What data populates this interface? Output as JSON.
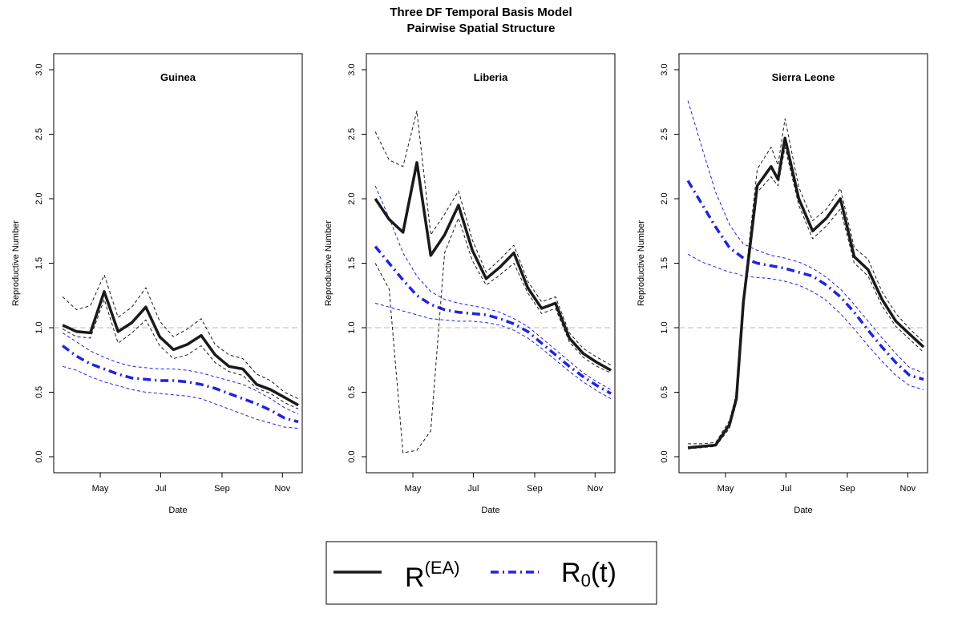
{
  "title": {
    "line1": "Three DF Temporal Basis Model",
    "line2": "Pairwise Spatial Structure"
  },
  "legend": {
    "entries": [
      {
        "base": "R",
        "sup": "(EA)",
        "sub": "",
        "tail": "",
        "color": "#1a1a1a",
        "style": "solid"
      },
      {
        "base": "R",
        "sup": "",
        "sub": "0",
        "tail": "(t)",
        "color": "#2222e0",
        "style": "dashdot"
      }
    ]
  },
  "colors": {
    "rea": "#1a1a1a",
    "r0": "#2222e0",
    "reference": "#bbbbbb"
  },
  "chart_data": [
    {
      "type": "line",
      "title": "Guinea",
      "xlabel": "Date",
      "ylabel": "Reproductive Number",
      "ylim": [
        0.0,
        3.0
      ],
      "yticks": [
        0.0,
        0.5,
        1.0,
        1.5,
        2.0,
        2.5,
        3.0
      ],
      "ytick_labels": [
        "0.0",
        "0.5",
        "1.0",
        "1.5",
        "2.0",
        "2.5",
        "3.0"
      ],
      "xlim": [
        "2014-03-15",
        "2014-11-21"
      ],
      "xticks": [
        "2014-05-01",
        "2014-07-01",
        "2014-09-01",
        "2014-11-01"
      ],
      "xtick_labels": [
        "May",
        "Jul",
        "Sep",
        "Nov"
      ],
      "reference_line": 1.0,
      "x": [
        "2014-03-24",
        "2014-04-07",
        "2014-04-21",
        "2014-05-05",
        "2014-05-19",
        "2014-06-02",
        "2014-06-16",
        "2014-06-30",
        "2014-07-14",
        "2014-07-28",
        "2014-08-11",
        "2014-08-25",
        "2014-09-08",
        "2014-09-22",
        "2014-10-06",
        "2014-10-20",
        "2014-11-03",
        "2014-11-17"
      ],
      "series": [
        {
          "name": "R(EA)",
          "values": [
            1.02,
            0.97,
            0.96,
            1.28,
            0.97,
            1.04,
            1.16,
            0.93,
            0.83,
            0.87,
            0.94,
            0.79,
            0.7,
            0.68,
            0.56,
            0.52,
            0.46,
            0.4
          ]
        },
        {
          "name": "R(EA) lower",
          "values": [
            0.99,
            0.93,
            0.92,
            1.22,
            0.88,
            0.96,
            1.06,
            0.86,
            0.76,
            0.79,
            0.86,
            0.73,
            0.66,
            0.63,
            0.53,
            0.49,
            0.42,
            0.37
          ]
        },
        {
          "name": "R(EA) upper",
          "values": [
            1.24,
            1.14,
            1.17,
            1.41,
            1.08,
            1.16,
            1.31,
            1.05,
            0.93,
            0.99,
            1.07,
            0.87,
            0.79,
            0.76,
            0.64,
            0.59,
            0.5,
            0.45
          ]
        },
        {
          "name": "R0(t)",
          "values": [
            0.86,
            0.78,
            0.72,
            0.68,
            0.64,
            0.61,
            0.6,
            0.59,
            0.59,
            0.58,
            0.56,
            0.53,
            0.49,
            0.45,
            0.41,
            0.36,
            0.3,
            0.27
          ]
        },
        {
          "name": "R0(t) lower",
          "values": [
            0.7,
            0.67,
            0.62,
            0.58,
            0.55,
            0.52,
            0.5,
            0.49,
            0.48,
            0.47,
            0.45,
            0.41,
            0.37,
            0.33,
            0.29,
            0.26,
            0.23,
            0.22
          ]
        },
        {
          "name": "R0(t) upper",
          "values": [
            0.96,
            0.89,
            0.82,
            0.77,
            0.73,
            0.7,
            0.69,
            0.68,
            0.68,
            0.67,
            0.65,
            0.62,
            0.59,
            0.56,
            0.51,
            0.45,
            0.38,
            0.33
          ]
        }
      ]
    },
    {
      "type": "line",
      "title": "Liberia",
      "xlabel": "Date",
      "ylabel": "Reproductive Number",
      "ylim": [
        0.0,
        3.0
      ],
      "yticks": [
        0.0,
        0.5,
        1.0,
        1.5,
        2.0,
        2.5,
        3.0
      ],
      "ytick_labels": [
        "0.0",
        "0.5",
        "1.0",
        "1.5",
        "2.0",
        "2.5",
        "3.0"
      ],
      "xlim": [
        "2014-03-15",
        "2014-11-21"
      ],
      "xticks": [
        "2014-05-01",
        "2014-07-01",
        "2014-09-01",
        "2014-11-01"
      ],
      "xtick_labels": [
        "May",
        "Jul",
        "Sep",
        "Nov"
      ],
      "reference_line": 1.0,
      "x": [
        "2014-03-24",
        "2014-04-07",
        "2014-04-21",
        "2014-05-05",
        "2014-05-19",
        "2014-06-02",
        "2014-06-16",
        "2014-06-30",
        "2014-07-14",
        "2014-07-28",
        "2014-08-11",
        "2014-08-25",
        "2014-09-08",
        "2014-09-22",
        "2014-10-06",
        "2014-10-20",
        "2014-11-03",
        "2014-11-17"
      ],
      "series": [
        {
          "name": "R(EA)",
          "values": [
            2.0,
            1.84,
            1.74,
            2.28,
            1.56,
            1.72,
            1.95,
            1.6,
            1.38,
            1.47,
            1.58,
            1.31,
            1.15,
            1.19,
            0.92,
            0.8,
            0.73,
            0.67
          ]
        },
        {
          "name": "R(EA) lower",
          "values": [
            1.5,
            1.3,
            0.03,
            0.05,
            0.2,
            1.58,
            1.85,
            1.52,
            1.33,
            1.41,
            1.5,
            1.27,
            1.11,
            1.15,
            0.89,
            0.77,
            0.7,
            0.65
          ]
        },
        {
          "name": "R(EA) upper",
          "values": [
            2.52,
            2.3,
            2.25,
            2.68,
            1.72,
            1.88,
            2.06,
            1.68,
            1.43,
            1.53,
            1.64,
            1.36,
            1.2,
            1.24,
            0.96,
            0.84,
            0.77,
            0.71
          ]
        },
        {
          "name": "R0(t)",
          "values": [
            1.63,
            1.5,
            1.37,
            1.25,
            1.18,
            1.14,
            1.12,
            1.11,
            1.1,
            1.07,
            1.03,
            0.97,
            0.88,
            0.79,
            0.7,
            0.62,
            0.55,
            0.49
          ]
        },
        {
          "name": "R0(t) lower",
          "values": [
            1.19,
            1.16,
            1.13,
            1.1,
            1.07,
            1.06,
            1.05,
            1.05,
            1.04,
            1.02,
            0.98,
            0.92,
            0.84,
            0.75,
            0.66,
            0.58,
            0.51,
            0.45
          ]
        },
        {
          "name": "R0(t) upper",
          "values": [
            2.1,
            1.85,
            1.58,
            1.4,
            1.28,
            1.22,
            1.19,
            1.17,
            1.15,
            1.12,
            1.07,
            1.01,
            0.92,
            0.83,
            0.74,
            0.65,
            0.58,
            0.52
          ]
        }
      ]
    },
    {
      "type": "line",
      "title": "Sierra Leone",
      "xlabel": "Date",
      "ylabel": "Reproductive Number",
      "ylim": [
        0.0,
        3.0
      ],
      "yticks": [
        0.0,
        0.5,
        1.0,
        1.5,
        2.0,
        2.5,
        3.0
      ],
      "ytick_labels": [
        "0.0",
        "0.5",
        "1.0",
        "1.5",
        "2.0",
        "2.5",
        "3.0"
      ],
      "xlim": [
        "2014-03-15",
        "2014-11-21"
      ],
      "xticks": [
        "2014-05-01",
        "2014-07-01",
        "2014-09-01",
        "2014-11-01"
      ],
      "xtick_labels": [
        "May",
        "Jul",
        "Sep",
        "Nov"
      ],
      "reference_line": 1.0,
      "x": [
        "2014-03-24",
        "2014-04-07",
        "2014-04-21",
        "2014-05-05",
        "2014-05-12",
        "2014-05-19",
        "2014-06-02",
        "2014-06-16",
        "2014-06-23",
        "2014-06-30",
        "2014-07-14",
        "2014-07-28",
        "2014-08-11",
        "2014-08-25",
        "2014-09-08",
        "2014-09-22",
        "2014-10-06",
        "2014-10-20",
        "2014-11-03",
        "2014-11-17"
      ],
      "series": [
        {
          "name": "R(EA)",
          "values": [
            0.07,
            0.08,
            0.09,
            0.25,
            0.45,
            1.2,
            2.1,
            2.25,
            2.15,
            2.47,
            2.0,
            1.75,
            1.85,
            2.0,
            1.55,
            1.45,
            1.22,
            1.05,
            0.95,
            0.85
          ]
        },
        {
          "name": "R(EA) lower",
          "values": [
            0.06,
            0.07,
            0.08,
            0.22,
            0.42,
            1.15,
            2.05,
            2.17,
            2.1,
            2.4,
            1.95,
            1.69,
            1.79,
            1.92,
            1.5,
            1.4,
            1.17,
            1.01,
            0.91,
            0.81
          ]
        },
        {
          "name": "R(EA) upper",
          "values": [
            0.1,
            0.1,
            0.11,
            0.28,
            0.49,
            1.25,
            2.23,
            2.4,
            2.26,
            2.62,
            2.09,
            1.83,
            1.92,
            2.08,
            1.62,
            1.53,
            1.28,
            1.11,
            0.99,
            0.89
          ]
        },
        {
          "name": "R0(t)",
          "values": [
            2.14,
            1.96,
            1.78,
            1.62,
            1.58,
            1.54,
            1.5,
            1.48,
            1.47,
            1.46,
            1.43,
            1.4,
            1.33,
            1.24,
            1.12,
            0.98,
            0.85,
            0.73,
            0.63,
            0.6
          ]
        },
        {
          "name": "R0(t) lower",
          "values": [
            1.57,
            1.51,
            1.47,
            1.43,
            1.42,
            1.4,
            1.39,
            1.38,
            1.37,
            1.36,
            1.33,
            1.28,
            1.21,
            1.11,
            0.99,
            0.86,
            0.74,
            0.63,
            0.55,
            0.52
          ]
        },
        {
          "name": "R0(t) upper",
          "values": [
            2.76,
            2.4,
            2.05,
            1.8,
            1.72,
            1.65,
            1.6,
            1.56,
            1.55,
            1.54,
            1.51,
            1.46,
            1.39,
            1.3,
            1.18,
            1.05,
            0.92,
            0.8,
            0.69,
            0.65
          ]
        }
      ]
    }
  ]
}
